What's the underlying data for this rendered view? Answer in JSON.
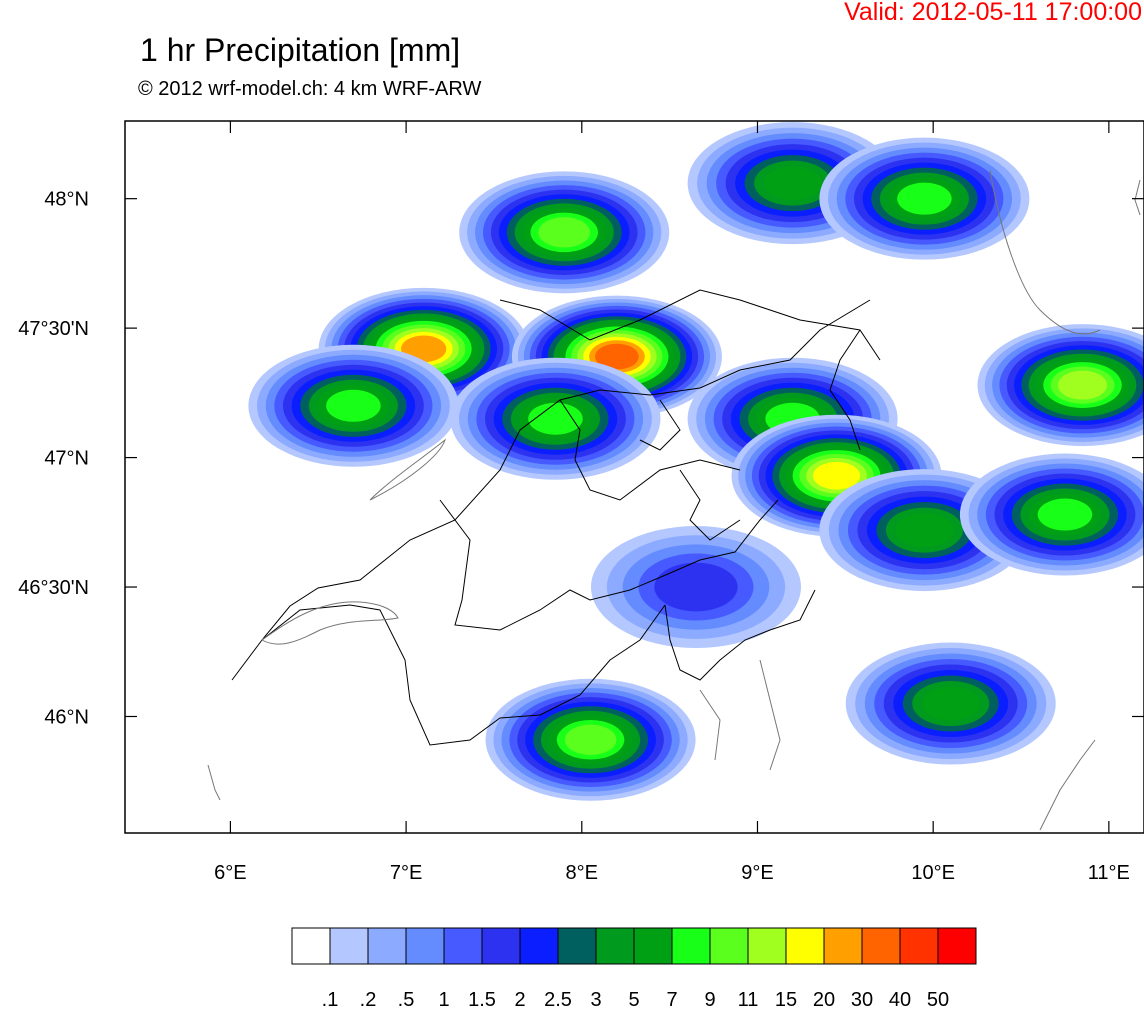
{
  "header": {
    "valid": "Valid: 2012-05-11 17:00:00",
    "title": "1 hr Precipitation [mm]",
    "subtitle": "© 2012 wrf-model.ch: 4 km WRF-ARW"
  },
  "map": {
    "lon_range": [
      5.4,
      11.2
    ],
    "lat_range": [
      45.55,
      48.3
    ],
    "lon_ticks": [
      {
        "value": 6,
        "label": "6°E"
      },
      {
        "value": 7,
        "label": "7°E"
      },
      {
        "value": 8,
        "label": "8°E"
      },
      {
        "value": 9,
        "label": "9°E"
      },
      {
        "value": 10,
        "label": "10°E"
      },
      {
        "value": 11,
        "label": "11°E"
      }
    ],
    "lat_ticks": [
      {
        "value": 48,
        "label": "48°N"
      },
      {
        "value": 47.5,
        "label": "47°30'N"
      },
      {
        "value": 47,
        "label": "47°N"
      },
      {
        "value": 46.5,
        "label": "46°30'N"
      },
      {
        "value": 46,
        "label": "46°N"
      }
    ],
    "precip_cells": [
      {
        "lon": 7.1,
        "lat": 47.42,
        "max": 20
      },
      {
        "lon": 6.7,
        "lat": 47.2,
        "max": 7
      },
      {
        "lon": 7.9,
        "lat": 47.87,
        "max": 9
      },
      {
        "lon": 8.2,
        "lat": 47.39,
        "max": 30
      },
      {
        "lon": 7.85,
        "lat": 47.15,
        "max": 7
      },
      {
        "lon": 9.2,
        "lat": 47.15,
        "max": 7
      },
      {
        "lon": 9.2,
        "lat": 48.06,
        "max": 5
      },
      {
        "lon": 9.95,
        "lat": 48.0,
        "max": 7
      },
      {
        "lon": 9.45,
        "lat": 46.93,
        "max": 15
      },
      {
        "lon": 9.95,
        "lat": 46.72,
        "max": 5
      },
      {
        "lon": 10.85,
        "lat": 47.28,
        "max": 11
      },
      {
        "lon": 10.75,
        "lat": 46.78,
        "max": 7
      },
      {
        "lon": 8.05,
        "lat": 45.91,
        "max": 9
      },
      {
        "lon": 10.1,
        "lat": 46.05,
        "max": 5
      },
      {
        "lon": 8.65,
        "lat": 46.5,
        "max": 1.5
      }
    ]
  },
  "colorbar": {
    "colors": [
      "#ffffff",
      "#b4c8ff",
      "#8caaff",
      "#648cff",
      "#465aff",
      "#2d32f0",
      "#0a1eff",
      "#006060",
      "#009a1e",
      "#00a014",
      "#18ff18",
      "#5aff1e",
      "#a0ff1e",
      "#ffff00",
      "#ffa000",
      "#ff6400",
      "#ff3200",
      "#ff0000"
    ],
    "labels": [
      ".1",
      ".2",
      ".5",
      "1",
      "1.5",
      "2",
      "2.5",
      "3",
      "5",
      "7",
      "9",
      "11",
      "15",
      "20",
      "30",
      "40",
      "50"
    ]
  }
}
